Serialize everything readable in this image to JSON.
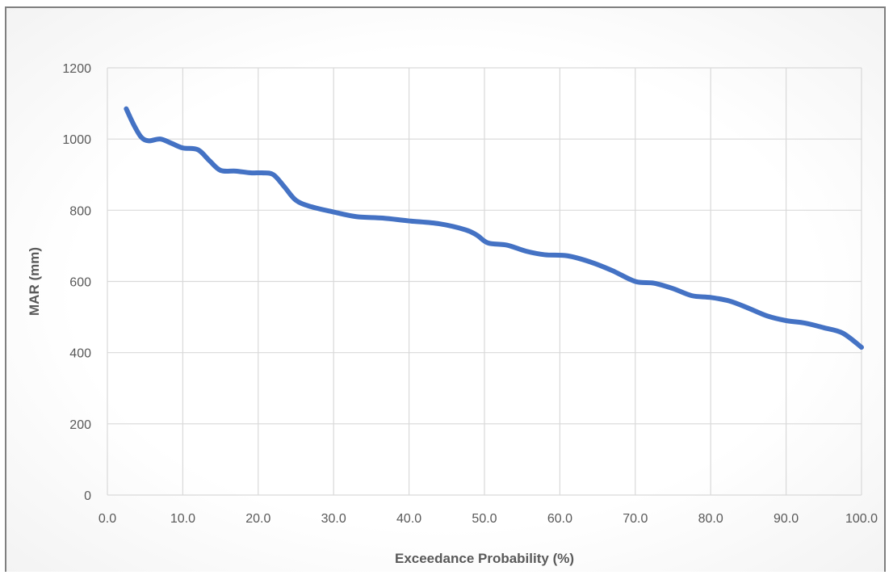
{
  "chart_data": {
    "type": "line",
    "title": "",
    "xlabel": "Exceedance Probability (%)",
    "ylabel": "MAR (mm)",
    "xlim": [
      0,
      100
    ],
    "ylim": [
      0,
      1200
    ],
    "xticks": [
      "0.0",
      "10.0",
      "20.0",
      "30.0",
      "40.0",
      "50.0",
      "60.0",
      "70.0",
      "80.0",
      "90.0",
      "100.0"
    ],
    "yticks": [
      "0",
      "200",
      "400",
      "600",
      "800",
      "1000",
      "1200"
    ],
    "grid": true,
    "legend": "none",
    "series": [
      {
        "color": "#4472c4",
        "x": [
          2.5,
          3.5,
          4.5,
          5.5,
          7.0,
          8.5,
          10.0,
          12.0,
          13.5,
          15.0,
          17.0,
          19.0,
          20.5,
          22.0,
          23.5,
          25.0,
          27.0,
          30.0,
          33.0,
          36.5,
          40.0,
          44.0,
          47.5,
          49.0,
          50.5,
          53.0,
          55.5,
          58.0,
          61.0,
          64.0,
          67.0,
          70.0,
          72.5,
          75.0,
          77.5,
          80.0,
          82.5,
          85.0,
          87.5,
          90.0,
          92.5,
          95.0,
          97.5,
          100.0
        ],
        "y": [
          1085,
          1040,
          1005,
          995,
          1000,
          988,
          975,
          970,
          940,
          912,
          910,
          905,
          905,
          900,
          865,
          828,
          810,
          795,
          782,
          778,
          770,
          762,
          745,
          730,
          708,
          702,
          685,
          675,
          672,
          655,
          630,
          600,
          595,
          580,
          560,
          555,
          545,
          525,
          503,
          490,
          483,
          470,
          455,
          415
        ]
      }
    ]
  }
}
